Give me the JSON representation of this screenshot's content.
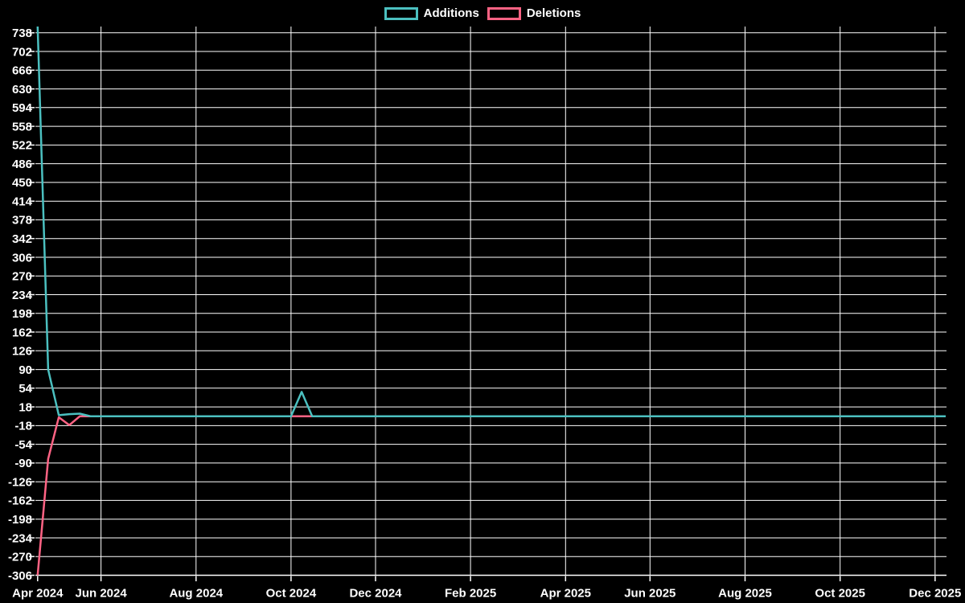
{
  "chart_data": {
    "type": "line",
    "title": "",
    "background_color": "#000000",
    "grid": {
      "show": true,
      "color": "#ffffff"
    },
    "legend": {
      "position": "top"
    },
    "x_axis": {
      "type": "time-weekly",
      "start_date": "2024-04-21",
      "end_date": "2025-12-14",
      "weeks_total": 87,
      "ticks": [
        {
          "label": "Apr 2024",
          "week": 0
        },
        {
          "label": "Jun 2024",
          "week": 6
        },
        {
          "label": "Aug 2024",
          "week": 15
        },
        {
          "label": "Oct 2024",
          "week": 24
        },
        {
          "label": "Dec 2024",
          "week": 32
        },
        {
          "label": "Feb 2025",
          "week": 41
        },
        {
          "label": "Apr 2025",
          "week": 50
        },
        {
          "label": "Jun 2025",
          "week": 58
        },
        {
          "label": "Aug 2025",
          "week": 67
        },
        {
          "label": "Oct 2025",
          "week": 76
        },
        {
          "label": "Dec 2025",
          "week": 85
        }
      ]
    },
    "y_axis": {
      "min": -306,
      "max": 750,
      "tick_step": 36,
      "ticks": [
        738,
        702,
        666,
        630,
        594,
        558,
        522,
        486,
        450,
        414,
        378,
        342,
        306,
        270,
        234,
        198,
        162,
        126,
        90,
        54,
        18,
        -18,
        -54,
        -90,
        -126,
        -162,
        -198,
        -234,
        -270,
        -306
      ]
    },
    "series": [
      {
        "name": "Additions",
        "color": "#4bc0c0",
        "points": [
          {
            "date": "2024-04-21",
            "week": 0,
            "value": 750
          },
          {
            "date": "2024-04-28",
            "week": 1,
            "value": 90
          },
          {
            "date": "2024-05-05",
            "week": 2,
            "value": 2
          },
          {
            "date": "2024-05-12",
            "week": 3,
            "value": 4
          },
          {
            "date": "2024-05-19",
            "week": 4,
            "value": 5
          },
          {
            "date": "2024-05-26",
            "week": 5,
            "value": 0
          },
          {
            "date": "2024-10-06",
            "week": 24,
            "value": 0
          },
          {
            "date": "2024-10-13",
            "week": 25,
            "value": 47
          },
          {
            "date": "2024-10-20",
            "week": 26,
            "value": 0
          },
          {
            "date": "2025-12-14",
            "week": 86,
            "value": 0
          }
        ]
      },
      {
        "name": "Deletions",
        "color": "#ff6384",
        "points": [
          {
            "date": "2024-04-21",
            "week": 0,
            "value": -306
          },
          {
            "date": "2024-04-28",
            "week": 1,
            "value": -82
          },
          {
            "date": "2024-05-05",
            "week": 2,
            "value": -2
          },
          {
            "date": "2024-05-12",
            "week": 3,
            "value": -17
          },
          {
            "date": "2024-05-19",
            "week": 4,
            "value": 0
          },
          {
            "date": "2025-12-14",
            "week": 86,
            "value": 0
          }
        ]
      }
    ]
  }
}
